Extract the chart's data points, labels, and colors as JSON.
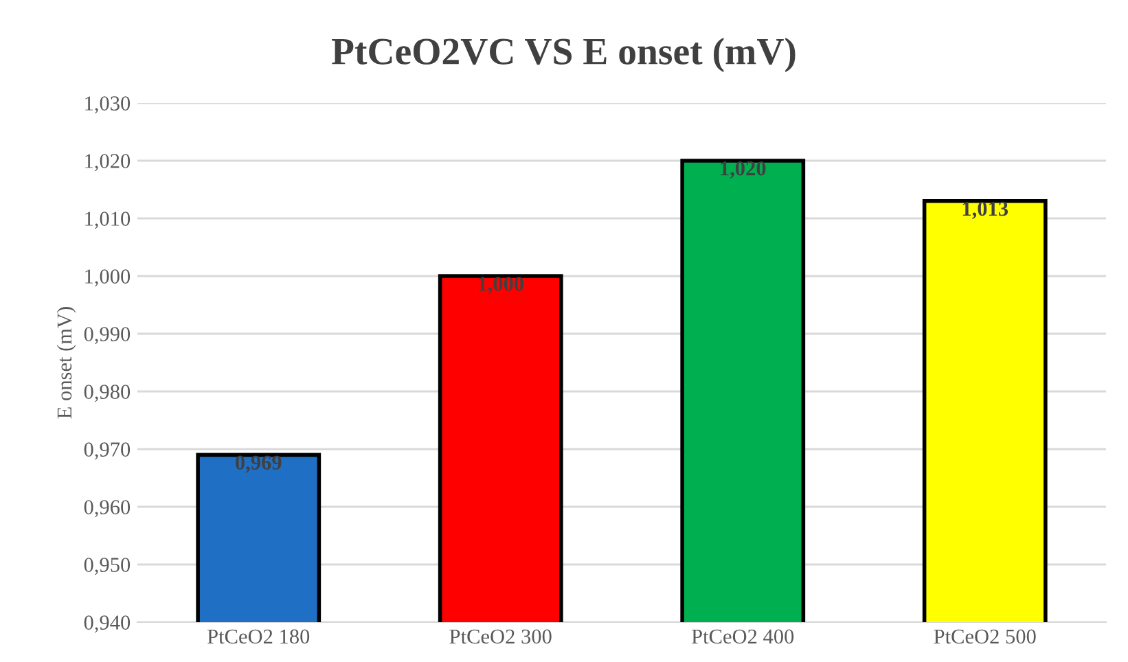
{
  "chart_data": {
    "type": "bar",
    "title": "PtCeO2VC VS E onset (mV)",
    "ylabel": "E onset (mV)",
    "categories": [
      "PtCeO2 180",
      "PtCeO2 300",
      "PtCeO2 400",
      "PtCeO2 500"
    ],
    "values": [
      0.969,
      1.0,
      1.02,
      1.013
    ],
    "colors": [
      "#1f6fc5",
      "#ff0000",
      "#00b050",
      "#ffff00"
    ],
    "value_labels": [
      "0,969",
      "1,000",
      "1,020",
      "1,013"
    ],
    "ylim": [
      0.94,
      1.03
    ],
    "yticks": [
      {
        "value": 0.94,
        "label": "0,940"
      },
      {
        "value": 0.95,
        "label": "0,950"
      },
      {
        "value": 0.96,
        "label": "0,960"
      },
      {
        "value": 0.97,
        "label": "0,970"
      },
      {
        "value": 0.98,
        "label": "0,980"
      },
      {
        "value": 0.99,
        "label": "0,990"
      },
      {
        "value": 1.0,
        "label": "1,000"
      },
      {
        "value": 1.01,
        "label": "1,010"
      },
      {
        "value": 1.02,
        "label": "1,020"
      },
      {
        "value": 1.03,
        "label": "1,030"
      }
    ],
    "grid": "y",
    "legend": false
  }
}
